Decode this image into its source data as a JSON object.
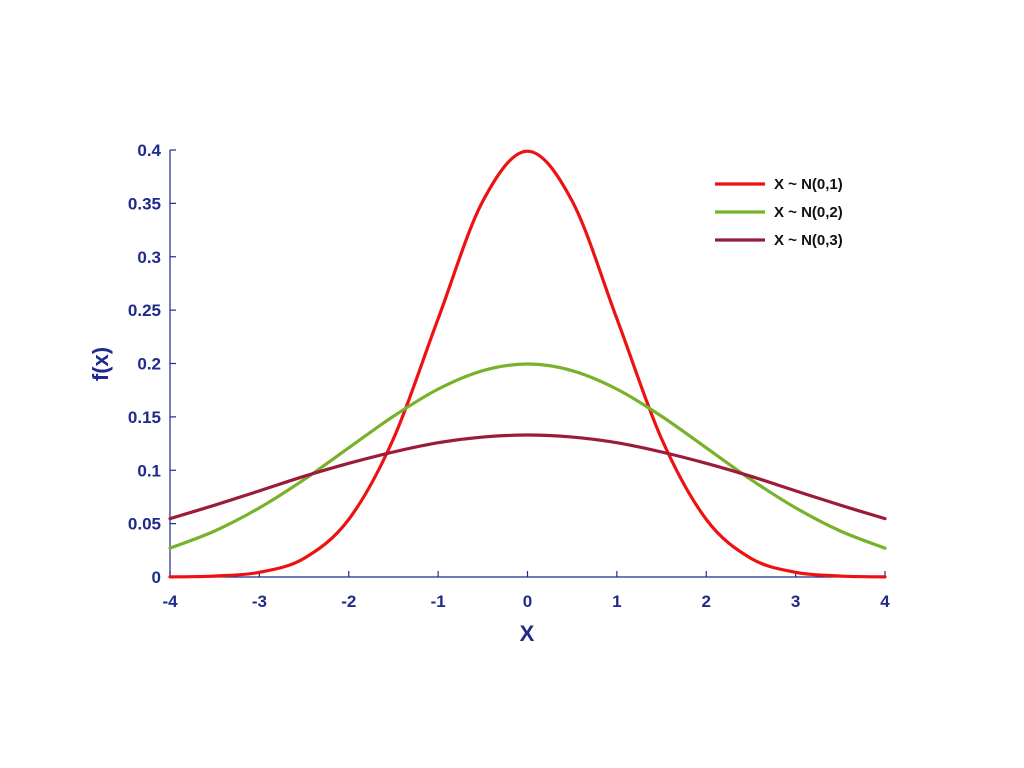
{
  "chart_data": {
    "type": "line",
    "title": "",
    "xlabel": "X",
    "ylabel": "f(x)",
    "xlim": [
      -4,
      4
    ],
    "ylim": [
      0,
      0.4
    ],
    "x_ticks": [
      "-4",
      "-3",
      "-2",
      "-1",
      "0",
      "1",
      "2",
      "3",
      "4"
    ],
    "y_ticks": [
      "0",
      "0.05",
      "0.1",
      "0.15",
      "0.2",
      "0.25",
      "0.3",
      "0.35",
      "0.4"
    ],
    "grid": false,
    "legend_position": "top-right",
    "x": [
      -4,
      -3.5,
      -3,
      -2.5,
      -2,
      -1.5,
      -1,
      -0.5,
      0,
      0.5,
      1,
      1.5,
      2,
      2.5,
      3,
      3.5,
      4
    ],
    "series": [
      {
        "name": "X ~ N(0,1)",
        "color": "#ee1111",
        "values": [
          0.0001,
          0.0009,
          0.0044,
          0.0175,
          0.054,
          0.1295,
          0.242,
          0.3521,
          0.3989,
          0.3521,
          0.242,
          0.1295,
          0.054,
          0.0175,
          0.0044,
          0.0009,
          0.0001
        ]
      },
      {
        "name": "X ~ N(0,2)",
        "color": "#77b22a",
        "values": [
          0.027,
          0.0431,
          0.0648,
          0.0913,
          0.121,
          0.1506,
          0.176,
          0.1933,
          0.1995,
          0.1933,
          0.176,
          0.1506,
          0.121,
          0.0913,
          0.0648,
          0.0431,
          0.027
        ]
      },
      {
        "name": "X ~ N(0,3)",
        "color": "#9b1b3b",
        "values": [
          0.0547,
          0.0673,
          0.0807,
          0.0943,
          0.1065,
          0.1171,
          0.1258,
          0.1311,
          0.133,
          0.1311,
          0.1258,
          0.1171,
          0.1065,
          0.0943,
          0.0807,
          0.0673,
          0.0547
        ]
      }
    ]
  }
}
